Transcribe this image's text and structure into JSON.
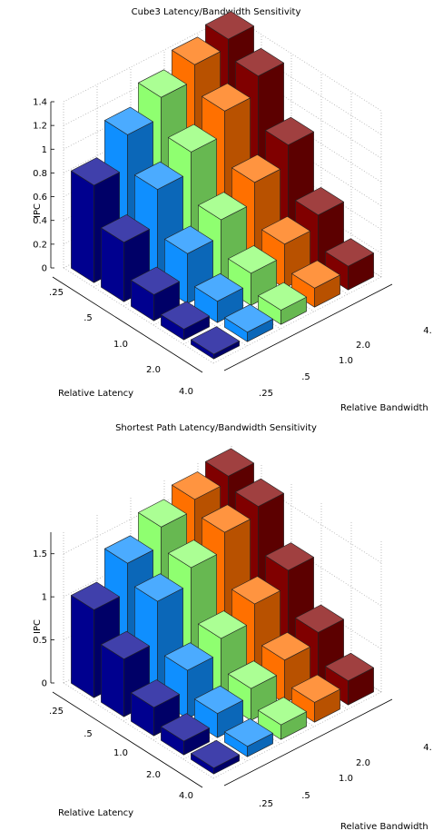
{
  "colors": {
    "bandwidth_0.25": "#00008f",
    "bandwidth_0.5": "#0f8fff",
    "bandwidth_1.0": "#8fff70",
    "bandwidth_2.0": "#ff7000",
    "bandwidth_4.0": "#800000",
    "grid": "#b0b0b0",
    "axis": "#000000",
    "edge": "#222222"
  },
  "chart_data": [
    {
      "type": "bar3d",
      "title": "Cube3 Latency/Bandwidth Sensitivity",
      "zlabel": "IPC",
      "xlabel": "Relative Latency",
      "ylabel": "Relative Bandwidth",
      "latency_ticks": [
        ".25",
        ".5",
        "1.0",
        "2.0",
        "4.0"
      ],
      "bandwidth_ticks": [
        ".25",
        ".5",
        "1.0",
        "2.0",
        "4."
      ],
      "z_ticks": [
        "0",
        "0.2",
        "0.4",
        "0.6",
        "0.8",
        "1",
        "1.2",
        "1.4"
      ],
      "zlim": [
        0,
        1.4
      ],
      "grid": true,
      "bandwidth_colors": [
        "bandwidth_0.25",
        "bandwidth_0.5",
        "bandwidth_1.0",
        "bandwidth_2.0",
        "bandwidth_4.0"
      ],
      "values": [
        [
          0.82,
          1.1,
          1.27,
          1.4,
          1.47
        ],
        [
          0.5,
          0.8,
          0.97,
          1.17,
          1.32
        ],
        [
          0.22,
          0.42,
          0.56,
          0.73,
          0.9
        ],
        [
          0.09,
          0.18,
          0.27,
          0.37,
          0.47
        ],
        [
          0.04,
          0.08,
          0.12,
          0.16,
          0.2
        ]
      ]
    },
    {
      "type": "bar3d",
      "title": "Shortest Path Latency/Bandwidth Sensitivity",
      "zlabel": "IPC",
      "xlabel": "Relative Latency",
      "ylabel": "Relative Bandwidth",
      "latency_ticks": [
        ".25",
        ".5",
        "1.0",
        "2.0",
        "4.0"
      ],
      "bandwidth_ticks": [
        ".25",
        ".5",
        "1.0",
        "2.0",
        "4."
      ],
      "z_ticks": [
        "0",
        "0.5",
        "1",
        "1.5"
      ],
      "zlim": [
        0,
        1.75
      ],
      "grid": true,
      "bandwidth_colors": [
        "bandwidth_0.25",
        "bandwidth_0.5",
        "bandwidth_1.0",
        "bandwidth_2.0",
        "bandwidth_4.0"
      ],
      "values": [
        [
          1.02,
          1.36,
          1.58,
          1.7,
          1.77
        ],
        [
          0.67,
          1.14,
          1.33,
          1.54,
          1.64
        ],
        [
          0.33,
          0.56,
          0.73,
          0.93,
          1.12
        ],
        [
          0.16,
          0.28,
          0.37,
          0.5,
          0.62
        ],
        [
          0.07,
          0.12,
          0.17,
          0.23,
          0.28
        ]
      ]
    }
  ]
}
